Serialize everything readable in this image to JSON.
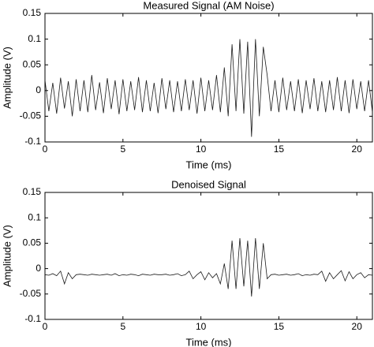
{
  "chart_data": [
    {
      "type": "line",
      "title": "Measured Signal (AM Noise)",
      "xlabel": "Time (ms)",
      "ylabel": "Amplitude (V)",
      "x": [
        0,
        0.25,
        0.5,
        0.75,
        1,
        1.25,
        1.5,
        1.75,
        2,
        2.25,
        2.5,
        2.75,
        3,
        3.25,
        3.5,
        3.75,
        4,
        4.25,
        4.5,
        4.75,
        5,
        5.25,
        5.5,
        5.75,
        6,
        6.25,
        6.5,
        6.75,
        7,
        7.25,
        7.5,
        7.75,
        8,
        8.25,
        8.5,
        8.75,
        9,
        9.25,
        9.5,
        9.75,
        10,
        10.25,
        10.5,
        10.75,
        11,
        11.25,
        11.5,
        11.75,
        12,
        12.25,
        12.5,
        12.75,
        13,
        13.25,
        13.5,
        13.75,
        14,
        14.25,
        14.5,
        14.75,
        15,
        15.25,
        15.5,
        15.75,
        16,
        16.25,
        16.5,
        16.75,
        17,
        17.25,
        17.5,
        17.75,
        18,
        18.25,
        18.5,
        18.75,
        19,
        19.25,
        19.5,
        19.75,
        20,
        20.25,
        20.5,
        20.75,
        21
      ],
      "series": [
        {
          "color": "#1a1a1a",
          "values": [
            0.02,
            -0.04,
            0.015,
            -0.045,
            0.025,
            -0.035,
            0.018,
            -0.05,
            0.022,
            -0.04,
            0.02,
            -0.042,
            0.03,
            -0.038,
            0.016,
            -0.044,
            0.024,
            -0.036,
            0.02,
            -0.046,
            0.022,
            -0.04,
            0.018,
            -0.038,
            0.026,
            -0.042,
            0.02,
            -0.04,
            0.015,
            -0.044,
            0.024,
            -0.036,
            0.02,
            -0.042,
            0.018,
            -0.04,
            0.022,
            -0.038,
            0.02,
            -0.045,
            0.025,
            -0.04,
            0.02,
            -0.038,
            0.03,
            -0.042,
            0.045,
            -0.05,
            0.09,
            -0.04,
            0.1,
            -0.045,
            0.095,
            -0.09,
            0.1,
            -0.05,
            0.085,
            0.03,
            -0.04,
            0.02,
            -0.042,
            0.025,
            -0.038,
            0.018,
            -0.04,
            0.022,
            -0.044,
            0.02,
            -0.036,
            0.024,
            -0.04,
            0.018,
            -0.042,
            0.02,
            -0.038,
            0.026,
            -0.04,
            0.02,
            -0.044,
            0.022,
            -0.036,
            0.018,
            -0.04,
            0.02,
            -0.042
          ]
        }
      ],
      "xlim": [
        0,
        21
      ],
      "ylim": [
        -0.1,
        0.15
      ],
      "xticks": [
        0,
        5,
        10,
        15,
        20
      ],
      "yticks": [
        -0.1,
        -0.05,
        0,
        0.05,
        0.1,
        0.15
      ]
    },
    {
      "type": "line",
      "title": "Denoised Signal",
      "xlabel": "Time (ms)",
      "ylabel": "Amplitude (V)",
      "x": [
        0,
        0.25,
        0.5,
        0.75,
        1,
        1.25,
        1.5,
        1.75,
        2,
        2.25,
        2.5,
        2.75,
        3,
        3.25,
        3.5,
        3.75,
        4,
        4.25,
        4.5,
        4.75,
        5,
        5.25,
        5.5,
        5.75,
        6,
        6.25,
        6.5,
        6.75,
        7,
        7.25,
        7.5,
        7.75,
        8,
        8.25,
        8.5,
        8.75,
        9,
        9.25,
        9.5,
        9.75,
        10,
        10.25,
        10.5,
        10.75,
        11,
        11.25,
        11.5,
        11.75,
        12,
        12.25,
        12.5,
        12.75,
        13,
        13.25,
        13.5,
        13.75,
        14,
        14.25,
        14.5,
        14.75,
        15,
        15.25,
        15.5,
        15.75,
        16,
        16.25,
        16.5,
        16.75,
        17,
        17.25,
        17.5,
        17.75,
        18,
        18.25,
        18.5,
        18.75,
        19,
        19.25,
        19.5,
        19.75,
        20,
        20.25,
        20.5,
        20.75,
        21
      ],
      "series": [
        {
          "color": "#1a1a1a",
          "values": [
            -0.012,
            -0.013,
            -0.01,
            -0.014,
            -0.005,
            -0.03,
            -0.008,
            -0.02,
            -0.012,
            -0.011,
            -0.012,
            -0.013,
            -0.011,
            -0.012,
            -0.013,
            -0.012,
            -0.011,
            -0.013,
            -0.01,
            -0.014,
            -0.012,
            -0.013,
            -0.011,
            -0.012,
            -0.014,
            -0.011,
            -0.012,
            -0.013,
            -0.011,
            -0.012,
            -0.012,
            -0.011,
            -0.013,
            -0.012,
            -0.01,
            -0.014,
            -0.012,
            -0.005,
            -0.02,
            -0.012,
            -0.006,
            -0.022,
            -0.008,
            -0.018,
            -0.01,
            -0.03,
            0.01,
            -0.04,
            0.055,
            -0.04,
            0.06,
            -0.035,
            0.055,
            -0.055,
            0.06,
            -0.04,
            0.05,
            -0.02,
            -0.012,
            -0.011,
            -0.013,
            -0.012,
            -0.011,
            -0.013,
            -0.012,
            -0.01,
            -0.014,
            -0.012,
            -0.013,
            -0.011,
            -0.012,
            -0.005,
            -0.025,
            -0.008,
            -0.02,
            -0.012,
            -0.004,
            -0.024,
            -0.006,
            -0.02,
            -0.012,
            -0.008,
            -0.018,
            -0.012,
            -0.013
          ]
        }
      ],
      "xlim": [
        0,
        21
      ],
      "ylim": [
        -0.1,
        0.15
      ],
      "xticks": [
        0,
        5,
        10,
        15,
        20
      ],
      "yticks": [
        -0.1,
        -0.05,
        0,
        0.05,
        0.1,
        0.15
      ]
    }
  ]
}
